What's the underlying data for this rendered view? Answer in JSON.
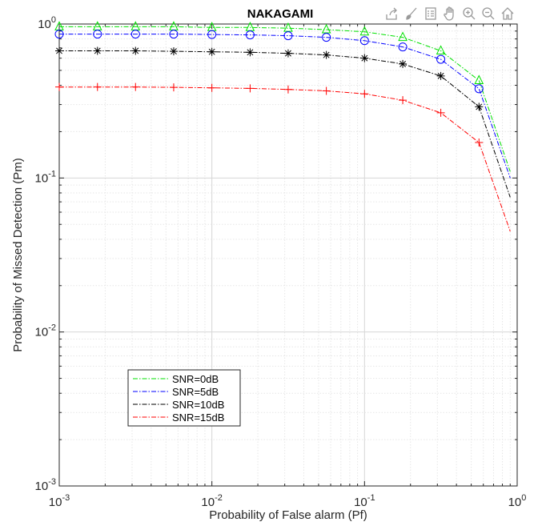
{
  "toolbar": {
    "icons": [
      "export-icon",
      "brush-icon",
      "legend-toggle-icon",
      "pan-hand-icon",
      "zoom-in-icon",
      "zoom-out-icon",
      "home-icon"
    ],
    "icon_color": "#9a9a9a"
  },
  "chart_data": {
    "type": "line",
    "title": "NAKAGAMI",
    "xlabel": "Probability of False alarm (Pf)",
    "ylabel": "Probability of Missed Detection (Pm)",
    "xscale": "log",
    "yscale": "log",
    "xlim": [
      0.001,
      1
    ],
    "ylim": [
      0.001,
      1
    ],
    "grid": true,
    "minor_grid": true,
    "legend_position": "lower-left",
    "x_ticks": [
      {
        "base": "10",
        "exp": "-3"
      },
      {
        "base": "10",
        "exp": "-2"
      },
      {
        "base": "10",
        "exp": "-1"
      },
      {
        "base": "10",
        "exp": "0"
      }
    ],
    "y_ticks": [
      {
        "base": "10",
        "exp": "-3"
      },
      {
        "base": "10",
        "exp": "-2"
      },
      {
        "base": "10",
        "exp": "-1"
      },
      {
        "base": "10",
        "exp": "0"
      }
    ],
    "x": [
      0.001,
      0.00178,
      0.00316,
      0.00562,
      0.01,
      0.0178,
      0.0316,
      0.0562,
      0.1,
      0.178,
      0.316,
      0.562,
      0.9
    ],
    "series": [
      {
        "name": "SNR=0dB",
        "color": "#00e000",
        "marker": "triangle",
        "values": [
          0.96,
          0.96,
          0.96,
          0.96,
          0.95,
          0.95,
          0.94,
          0.92,
          0.89,
          0.82,
          0.67,
          0.43,
          0.11
        ]
      },
      {
        "name": "SNR=5dB",
        "color": "#0000ff",
        "marker": "circle",
        "values": [
          0.86,
          0.86,
          0.86,
          0.86,
          0.855,
          0.85,
          0.84,
          0.82,
          0.78,
          0.71,
          0.59,
          0.38,
          0.1
        ]
      },
      {
        "name": "SNR=10dB",
        "color": "#000000",
        "marker": "asterisk",
        "values": [
          0.67,
          0.67,
          0.67,
          0.665,
          0.66,
          0.655,
          0.645,
          0.63,
          0.6,
          0.55,
          0.46,
          0.29,
          0.075
        ]
      },
      {
        "name": "SNR=15dB",
        "color": "#ff0000",
        "marker": "plus",
        "values": [
          0.39,
          0.39,
          0.39,
          0.388,
          0.385,
          0.382,
          0.376,
          0.368,
          0.352,
          0.32,
          0.265,
          0.17,
          0.045
        ]
      }
    ]
  }
}
